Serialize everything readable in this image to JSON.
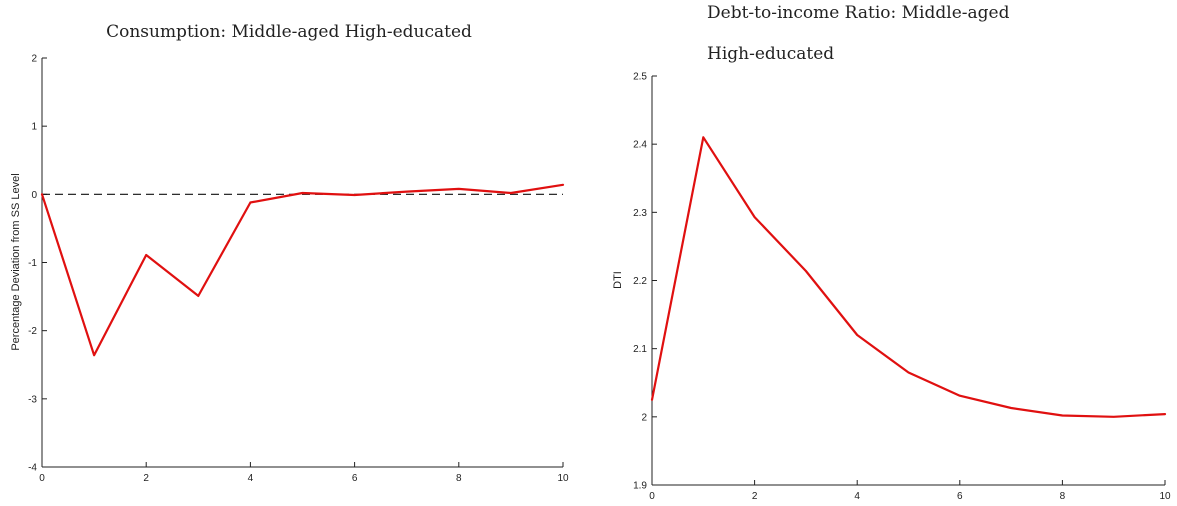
{
  "chart_data": [
    {
      "type": "line",
      "title": "Consumption:  Middle-aged High-educated",
      "xlabel": "",
      "ylabel": "Percentage Deviation from SS Level",
      "xlim": [
        0,
        10
      ],
      "ylim": [
        -4,
        2
      ],
      "xticks": [
        0,
        2,
        4,
        6,
        8,
        10
      ],
      "yticks": [
        -4,
        -3,
        -2,
        -1,
        0,
        1,
        2
      ],
      "zero_line": true,
      "series": [
        {
          "color": "#e01010",
          "x": [
            0,
            1,
            2,
            3,
            4,
            5,
            6,
            7,
            8,
            9,
            10
          ],
          "values": [
            0,
            -2.36,
            -0.89,
            -1.49,
            -0.12,
            0.02,
            -0.01,
            0.04,
            0.08,
            0.02,
            0.14
          ]
        }
      ]
    },
    {
      "type": "line",
      "title_lines": [
        "Debt-to-income  Ratio:   Middle-aged",
        "High-educated"
      ],
      "xlabel": "",
      "ylabel": "DTI",
      "xlim": [
        0,
        10
      ],
      "ylim": [
        1.9,
        2.5
      ],
      "xticks": [
        0,
        2,
        4,
        6,
        8,
        10
      ],
      "yticks": [
        1.9,
        2,
        2.1,
        2.2,
        2.3,
        2.4,
        2.5
      ],
      "zero_line": false,
      "series": [
        {
          "color": "#e01010",
          "x": [
            0,
            1,
            2,
            3,
            4,
            5,
            6,
            7,
            8,
            9,
            10
          ],
          "values": [
            2.025,
            2.41,
            2.293,
            2.214,
            2.12,
            2.065,
            2.031,
            2.013,
            2.002,
            2.0,
            2.004
          ]
        }
      ]
    }
  ]
}
